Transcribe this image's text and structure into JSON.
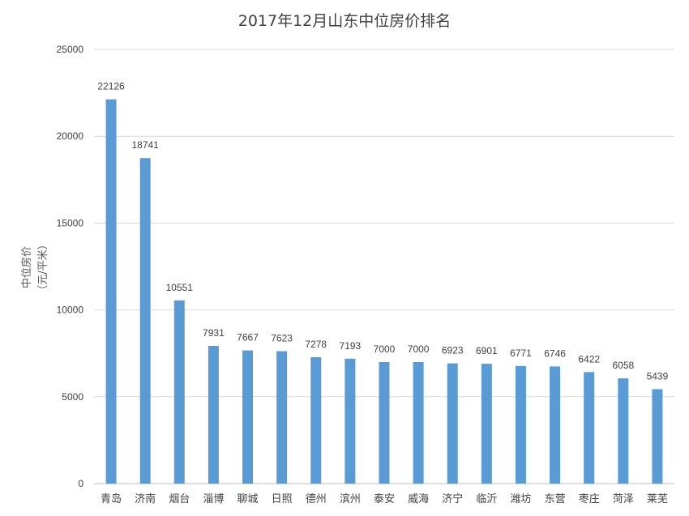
{
  "chart_data": {
    "type": "bar",
    "title": "2017年12月山东中位房价排名",
    "xlabel": "",
    "ylabel": "中位房价",
    "ylabel_unit": "（元/平米）",
    "ylim": [
      0,
      25000
    ],
    "yticks": [
      0,
      5000,
      10000,
      15000,
      20000,
      25000
    ],
    "grid": true,
    "legend": "none",
    "categories": [
      "青岛",
      "济南",
      "烟台",
      "淄博",
      "聊城",
      "日照",
      "德州",
      "滨州",
      "泰安",
      "威海",
      "济宁",
      "临沂",
      "潍坊",
      "东营",
      "枣庄",
      "菏泽",
      "莱芜"
    ],
    "values": [
      22126,
      18741,
      10551,
      7931,
      7667,
      7623,
      7278,
      7193,
      7000,
      7000,
      6923,
      6901,
      6771,
      6746,
      6422,
      6058,
      5439
    ],
    "bar_color": "#5b9bd5"
  }
}
